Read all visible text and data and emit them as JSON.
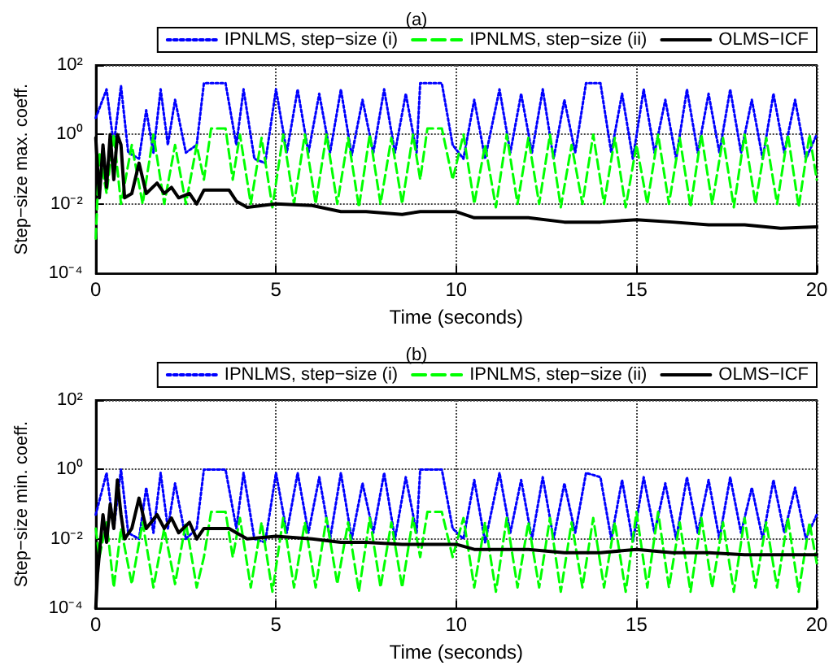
{
  "chart_data": [
    {
      "type": "line",
      "title": "(a)",
      "xlabel": "Time (seconds)",
      "ylabel": "Step−size max. coeff.",
      "xlim": [
        0,
        20
      ],
      "xticks": [
        0,
        5,
        10,
        15,
        20
      ],
      "ylim": [
        0.0001,
        100
      ],
      "yticks": [
        {
          "value": 0.0001,
          "label": "10⁻⁴"
        },
        {
          "value": 0.01,
          "label": "10⁻²"
        },
        {
          "value": 1,
          "label": "10⁰"
        },
        {
          "value": 100,
          "label": "10²"
        }
      ],
      "log": "y",
      "grid": true,
      "legend": "top right",
      "series": [
        {
          "name": "IPNLMS, step−size (i)",
          "color": "#0000ff",
          "line_style": "dotted",
          "x": [
            0,
            0.3,
            0.5,
            0.7,
            0.9,
            1.2,
            1.4,
            1.6,
            1.8,
            2,
            2.2,
            2.5,
            2.8,
            3,
            3.6,
            3.9,
            4.1,
            4.4,
            4.7,
            5,
            5.3,
            5.6,
            5.9,
            6.2,
            6.5,
            6.8,
            7.1,
            7.4,
            7.7,
            8,
            8.3,
            8.6,
            8.9,
            9,
            9.6,
            9.9,
            10.2,
            10.5,
            10.8,
            11.2,
            11.5,
            11.8,
            12.1,
            12.4,
            12.7,
            13,
            13.3,
            13.6,
            14,
            14.3,
            14.6,
            14.9,
            15.2,
            15.5,
            15.8,
            16.1,
            16.4,
            16.7,
            17,
            17.3,
            17.6,
            17.9,
            18.2,
            18.5,
            18.8,
            19.1,
            19.4,
            19.7,
            20
          ],
          "values": [
            3,
            20,
            0.5,
            25,
            0.3,
            0.2,
            5,
            0.3,
            20,
            0.5,
            10,
            0.3,
            0.5,
            30,
            30,
            0.5,
            20,
            0.2,
            0.15,
            20,
            0.3,
            20,
            0.3,
            15,
            0.3,
            20,
            0.25,
            10,
            0.3,
            20,
            0.3,
            15,
            0.3,
            30,
            30,
            0.5,
            0.2,
            10,
            0.2,
            20,
            0.3,
            15,
            0.3,
            20,
            0.2,
            10,
            0.3,
            30,
            30,
            0.3,
            15,
            0.2,
            20,
            0.3,
            10,
            0.2,
            20,
            0.3,
            15,
            0.3,
            20,
            0.3,
            10,
            0.2,
            15,
            0.3,
            10,
            0.2,
            1
          ]
        },
        {
          "name": "IPNLMS, step−size (ii)",
          "color": "#00ff00",
          "line_style": "dashed",
          "x": [
            0,
            0.1,
            0.3,
            0.5,
            0.7,
            1,
            1.3,
            1.6,
            1.9,
            2.2,
            2.5,
            2.8,
            3,
            3.2,
            3.6,
            3.8,
            4,
            4.3,
            4.6,
            4.9,
            5.2,
            5.5,
            5.8,
            6.1,
            6.4,
            6.7,
            7,
            7.3,
            7.6,
            7.9,
            8.2,
            8.5,
            8.8,
            9,
            9.2,
            9.6,
            9.9,
            10.2,
            10.5,
            10.8,
            11.1,
            11.4,
            11.7,
            12,
            12.3,
            12.6,
            12.9,
            13.2,
            13.5,
            13.8,
            14.1,
            14.4,
            14.7,
            15,
            15.3,
            15.6,
            15.9,
            16.2,
            16.5,
            16.8,
            17.1,
            17.4,
            17.7,
            18,
            18.3,
            18.6,
            18.9,
            19.2,
            19.5,
            19.8,
            20
          ],
          "values": [
            0.001,
            0.3,
            0.02,
            1,
            0.01,
            0.5,
            0.01,
            1,
            0.01,
            0.5,
            0.01,
            0.5,
            0.05,
            1.5,
            1.5,
            0.05,
            1,
            0.01,
            0.8,
            0.008,
            1,
            0.01,
            1,
            0.01,
            1,
            0.01,
            0.8,
            0.008,
            1,
            0.01,
            0.8,
            0.01,
            1,
            0.05,
            1.5,
            1.5,
            0.05,
            1,
            0.01,
            0.5,
            0.008,
            1,
            0.01,
            0.8,
            0.01,
            1,
            0.008,
            0.5,
            0.01,
            1,
            0.01,
            0.8,
            0.008,
            0.5,
            0.01,
            1,
            0.01,
            0.8,
            0.008,
            1,
            0.01,
            0.8,
            0.008,
            1,
            0.01,
            0.8,
            0.01,
            1,
            0.008,
            1,
            0.05
          ]
        },
        {
          "name": "OLMS−ICF",
          "color": "#000000",
          "line_style": "solid",
          "x": [
            0,
            0.1,
            0.2,
            0.3,
            0.4,
            0.5,
            0.6,
            0.7,
            0.8,
            1,
            1.2,
            1.4,
            1.7,
            1.9,
            2.1,
            2.3,
            2.6,
            2.8,
            3,
            3.7,
            3.9,
            4.2,
            5,
            6,
            6.8,
            7.5,
            8.5,
            9,
            10,
            10.5,
            12,
            13,
            14,
            15,
            16,
            17,
            18,
            19,
            20
          ],
          "values": [
            0.8,
            0.015,
            0.5,
            0.03,
            1,
            0.05,
            1,
            0.5,
            0.015,
            0.02,
            0.15,
            0.02,
            0.04,
            0.02,
            0.03,
            0.015,
            0.02,
            0.01,
            0.025,
            0.025,
            0.012,
            0.008,
            0.01,
            0.009,
            0.006,
            0.006,
            0.005,
            0.006,
            0.006,
            0.004,
            0.004,
            0.003,
            0.003,
            0.0035,
            0.003,
            0.0025,
            0.0025,
            0.002,
            0.0022
          ]
        }
      ]
    },
    {
      "type": "line",
      "title": "(b)",
      "xlabel": "Time (seconds)",
      "ylabel": "Step−size min. coeff.",
      "xlim": [
        0,
        20
      ],
      "xticks": [
        0,
        5,
        10,
        15,
        20
      ],
      "ylim": [
        0.0001,
        100
      ],
      "yticks": [
        {
          "value": 0.0001,
          "label": "10⁻⁴"
        },
        {
          "value": 0.01,
          "label": "10⁻²"
        },
        {
          "value": 1,
          "label": "10⁰"
        },
        {
          "value": 100,
          "label": "10²"
        }
      ],
      "log": "y",
      "grid": true,
      "legend": "top right",
      "series": [
        {
          "name": "IPNLMS, step−size (i)",
          "color": "#0000ff",
          "line_style": "dotted",
          "x": [
            0,
            0.3,
            0.5,
            0.7,
            0.9,
            1.2,
            1.4,
            1.6,
            1.8,
            2,
            2.2,
            2.5,
            2.8,
            3,
            3.6,
            3.9,
            4.1,
            4.4,
            4.7,
            5,
            5.3,
            5.6,
            5.9,
            6.2,
            6.5,
            6.8,
            7.1,
            7.4,
            7.7,
            8,
            8.3,
            8.6,
            8.9,
            9,
            9.6,
            9.9,
            10.2,
            10.5,
            10.8,
            11.2,
            11.5,
            11.8,
            12.1,
            12.4,
            12.7,
            13,
            13.3,
            13.6,
            14,
            14.3,
            14.6,
            14.9,
            15.2,
            15.5,
            15.8,
            16.1,
            16.4,
            16.7,
            17,
            17.3,
            17.6,
            17.9,
            18.2,
            18.5,
            18.8,
            19.1,
            19.4,
            19.7,
            20
          ],
          "values": [
            0.05,
            0.8,
            0.02,
            1,
            0.015,
            0.01,
            0.3,
            0.015,
            0.8,
            0.02,
            0.4,
            0.01,
            0.02,
            1,
            1,
            0.02,
            0.8,
            0.01,
            0.008,
            0.8,
            0.015,
            0.8,
            0.015,
            0.6,
            0.01,
            0.8,
            0.01,
            0.4,
            0.015,
            0.8,
            0.01,
            0.6,
            0.015,
            1,
            1,
            0.02,
            0.01,
            0.5,
            0.008,
            0.8,
            0.015,
            0.5,
            0.01,
            0.6,
            0.01,
            0.4,
            0.015,
            0.8,
            0.6,
            0.01,
            0.5,
            0.008,
            0.6,
            0.015,
            0.4,
            0.01,
            0.6,
            0.015,
            0.5,
            0.01,
            0.6,
            0.015,
            0.3,
            0.01,
            0.5,
            0.015,
            0.3,
            0.01,
            0.05
          ]
        },
        {
          "name": "IPNLMS, step−size (ii)",
          "color": "#00ff00",
          "line_style": "dashed",
          "x": [
            0,
            0.1,
            0.3,
            0.5,
            0.7,
            1,
            1.3,
            1.6,
            1.9,
            2.2,
            2.5,
            2.8,
            3,
            3.2,
            3.6,
            3.8,
            4,
            4.3,
            4.6,
            4.9,
            5.2,
            5.5,
            5.8,
            6.1,
            6.4,
            6.7,
            7,
            7.3,
            7.6,
            7.9,
            8.2,
            8.5,
            8.8,
            9,
            9.2,
            9.6,
            9.9,
            10.2,
            10.5,
            10.8,
            11.1,
            11.4,
            11.7,
            12,
            12.3,
            12.6,
            12.9,
            13.2,
            13.5,
            13.8,
            14.1,
            14.4,
            14.7,
            15,
            15.3,
            15.6,
            15.9,
            16.2,
            16.5,
            16.8,
            17.1,
            17.4,
            17.7,
            18,
            18.3,
            18.6,
            18.9,
            19.2,
            19.5,
            19.8,
            20
          ],
          "values": [
            0.02,
            0.003,
            0.03,
            0.0004,
            0.02,
            0.0005,
            0.03,
            0.0004,
            0.02,
            0.0005,
            0.03,
            0.0004,
            0.003,
            0.06,
            0.06,
            0.003,
            0.04,
            0.0004,
            0.03,
            0.0003,
            0.04,
            0.0004,
            0.03,
            0.0004,
            0.04,
            0.0005,
            0.03,
            0.0003,
            0.04,
            0.0004,
            0.03,
            0.0004,
            0.04,
            0.003,
            0.06,
            0.06,
            0.003,
            0.04,
            0.0004,
            0.03,
            0.0003,
            0.04,
            0.0004,
            0.03,
            0.0004,
            0.04,
            0.0003,
            0.03,
            0.0004,
            0.04,
            0.0004,
            0.03,
            0.0003,
            0.06,
            0.0004,
            0.06,
            0.0004,
            0.03,
            0.0003,
            0.04,
            0.0004,
            0.03,
            0.0003,
            0.04,
            0.0004,
            0.03,
            0.0004,
            0.04,
            0.0003,
            0.03,
            0.002
          ]
        },
        {
          "name": "OLMS−ICF",
          "color": "#000000",
          "line_style": "solid",
          "x": [
            0,
            0.05,
            0.2,
            0.3,
            0.4,
            0.5,
            0.6,
            0.7,
            0.8,
            1,
            1.2,
            1.4,
            1.7,
            1.9,
            2.1,
            2.3,
            2.6,
            2.8,
            3,
            3.7,
            3.9,
            4.2,
            5,
            6,
            6.8,
            7.5,
            8.5,
            9,
            10,
            10.5,
            12,
            13,
            14,
            15,
            16,
            17,
            18,
            19,
            20
          ],
          "values": [
            0.0001,
            0.001,
            0.05,
            0.008,
            0.1,
            0.02,
            0.5,
            0.05,
            0.01,
            0.02,
            0.15,
            0.02,
            0.05,
            0.02,
            0.04,
            0.015,
            0.03,
            0.01,
            0.02,
            0.02,
            0.015,
            0.01,
            0.012,
            0.01,
            0.008,
            0.008,
            0.007,
            0.007,
            0.007,
            0.005,
            0.005,
            0.004,
            0.004,
            0.005,
            0.004,
            0.004,
            0.0035,
            0.0035,
            0.0035
          ]
        }
      ]
    }
  ]
}
